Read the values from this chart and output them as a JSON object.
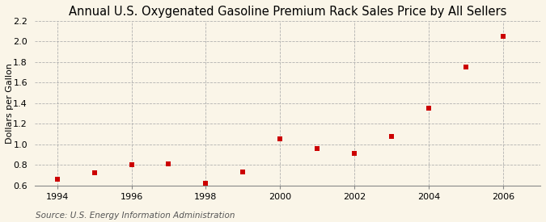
{
  "title": "Annual U.S. Oxygenated Gasoline Premium Rack Sales Price by All Sellers",
  "ylabel": "Dollars per Gallon",
  "source": "Source: U.S. Energy Information Administration",
  "years": [
    1994,
    1995,
    1996,
    1997,
    1998,
    1999,
    2000,
    2001,
    2002,
    2003,
    2004,
    2005,
    2006
  ],
  "values": [
    0.66,
    0.72,
    0.8,
    0.81,
    0.62,
    0.73,
    1.05,
    0.96,
    0.91,
    1.08,
    1.35,
    1.75,
    2.05
  ],
  "marker_color": "#cc0000",
  "marker": "s",
  "marker_size": 5,
  "xlim": [
    1993.4,
    2007.0
  ],
  "ylim": [
    0.6,
    2.2
  ],
  "yticks": [
    0.6,
    0.8,
    1.0,
    1.2,
    1.4,
    1.6,
    1.8,
    2.0,
    2.2
  ],
  "xticks": [
    1994,
    1996,
    1998,
    2000,
    2002,
    2004,
    2006
  ],
  "grid_color": "#aaaaaa",
  "background_color": "#faf5e8",
  "title_fontsize": 10.5,
  "label_fontsize": 8,
  "tick_fontsize": 8,
  "source_fontsize": 7.5
}
